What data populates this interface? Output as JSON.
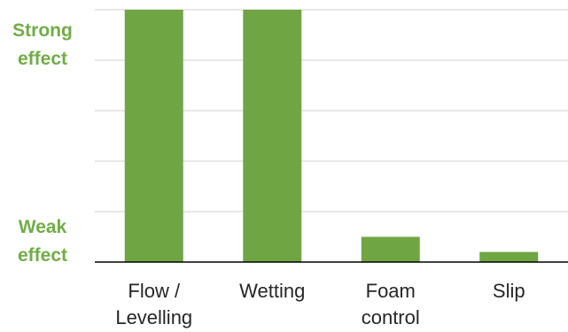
{
  "chart_data": {
    "type": "bar",
    "categories": [
      "Flow / Levelling",
      "Wetting",
      "Foam control",
      "Slip"
    ],
    "values": [
      5,
      5,
      0.5,
      0.2
    ],
    "color": "#70a544",
    "ylim": [
      0,
      5
    ],
    "yticks": [
      {
        "value": 4.3,
        "label": "Strong effect"
      },
      {
        "value": 0.4,
        "label": "Weak effect"
      }
    ],
    "gridlines": [
      1,
      2,
      3,
      4,
      5
    ],
    "grid": true
  }
}
